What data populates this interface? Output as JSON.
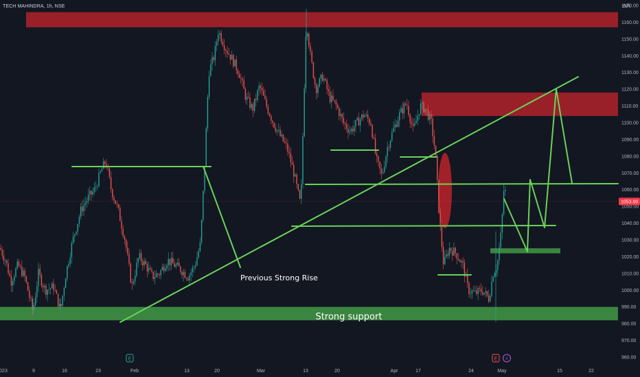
{
  "header": {
    "symbol": "TECH MAHINDRA, 1h, NSE",
    "currency": "INR"
  },
  "colors": {
    "background": "#131722",
    "candle_up": "#26a69a",
    "candle_down": "#ef5350",
    "resistance_zone": "#b2222a",
    "support_zone": "#3f9142",
    "trendline": "#6bd35a",
    "price_badge": "#f23645"
  },
  "chart_data": {
    "type": "candlestick",
    "instrument": "TECH MAHINDRA",
    "timeframe": "1h",
    "exchange": "NSE",
    "currency": "INR",
    "ylim": [
      955,
      1175
    ],
    "y_ticks": [
      960,
      970,
      980,
      990,
      1000,
      1010,
      1020,
      1030,
      1040,
      1050,
      1060,
      1070,
      1080,
      1090,
      1100,
      1110,
      1120,
      1130,
      1140,
      1150,
      1160,
      1170
    ],
    "x_ticks": [
      "023",
      "9",
      "16",
      "23",
      "Feb",
      "13",
      "20",
      "Mar",
      "13",
      "20",
      "Apr",
      "17",
      "24",
      "May",
      "15",
      "22"
    ],
    "last_price": "1053.00",
    "price_path": [
      [
        0,
        1025
      ],
      [
        8,
        1018
      ],
      [
        16,
        1005
      ],
      [
        26,
        1015
      ],
      [
        36,
        1008
      ],
      [
        48,
        987
      ],
      [
        56,
        1010
      ],
      [
        66,
        1000
      ],
      [
        78,
        1002
      ],
      [
        88,
        988
      ],
      [
        96,
        1010
      ],
      [
        106,
        1030
      ],
      [
        118,
        1048
      ],
      [
        128,
        1055
      ],
      [
        138,
        1060
      ],
      [
        148,
        1072
      ],
      [
        154,
        1077
      ],
      [
        162,
        1060
      ],
      [
        172,
        1048
      ],
      [
        182,
        1030
      ],
      [
        192,
        1002
      ],
      [
        202,
        1020
      ],
      [
        212,
        1015
      ],
      [
        222,
        1008
      ],
      [
        232,
        1010
      ],
      [
        244,
        1018
      ],
      [
        254,
        1015
      ],
      [
        264,
        1012
      ],
      [
        274,
        1008
      ],
      [
        284,
        1015
      ],
      [
        292,
        1028
      ],
      [
        298,
        1075
      ],
      [
        304,
        1130
      ],
      [
        312,
        1140
      ],
      [
        318,
        1155
      ],
      [
        328,
        1145
      ],
      [
        338,
        1138
      ],
      [
        348,
        1130
      ],
      [
        358,
        1115
      ],
      [
        368,
        1108
      ],
      [
        378,
        1122
      ],
      [
        388,
        1110
      ],
      [
        398,
        1100
      ],
      [
        408,
        1092
      ],
      [
        418,
        1085
      ],
      [
        428,
        1070
      ],
      [
        438,
        1050
      ],
      [
        446,
        1162
      ],
      [
        452,
        1140
      ],
      [
        460,
        1120
      ],
      [
        470,
        1128
      ],
      [
        480,
        1115
      ],
      [
        490,
        1110
      ],
      [
        500,
        1100
      ],
      [
        510,
        1095
      ],
      [
        520,
        1100
      ],
      [
        530,
        1105
      ],
      [
        540,
        1100
      ],
      [
        548,
        1078
      ],
      [
        556,
        1068
      ],
      [
        564,
        1085
      ],
      [
        572,
        1095
      ],
      [
        582,
        1105
      ],
      [
        592,
        1112
      ],
      [
        602,
        1095
      ],
      [
        612,
        1110
      ],
      [
        620,
        1108
      ],
      [
        628,
        1100
      ],
      [
        634,
        1082
      ],
      [
        640,
        1042
      ],
      [
        646,
        1015
      ],
      [
        654,
        1025
      ],
      [
        664,
        1022
      ],
      [
        674,
        1015
      ],
      [
        682,
        1000
      ],
      [
        692,
        998
      ],
      [
        702,
        1000
      ],
      [
        712,
        995
      ],
      [
        718,
        1010
      ],
      [
        724,
        1015
      ],
      [
        730,
        1035
      ],
      [
        734,
        1062
      ],
      [
        738,
        1055
      ]
    ],
    "resistance_zones": [
      {
        "y_range": [
          1157,
          1166
        ]
      },
      {
        "y_range": [
          1104,
          1118
        ]
      }
    ],
    "support_zones": [
      {
        "label": "Strong support",
        "y_range": [
          982,
          990
        ]
      },
      {
        "y_range": [
          1022,
          1025
        ]
      }
    ],
    "annotations": [
      {
        "text": "Previous Strong Rise"
      },
      {
        "text": "Strong support"
      }
    ],
    "horizontal_levels": [
      1077,
      1066,
      1041,
      1087,
      1083,
      1010
    ],
    "grid": false
  },
  "events": {
    "earnings_marker": "E",
    "split_marker": "⚡"
  }
}
